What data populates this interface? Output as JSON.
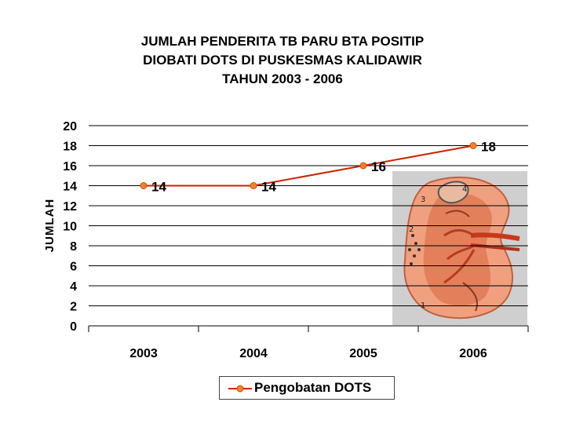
{
  "chart_data": {
    "type": "line",
    "title_lines": [
      "JUMLAH PENDERITA TB PARU BTA POSITIP",
      "DIOBATI DOTS DI PUSKESMAS KALIDAWIR",
      "TAHUN 2003 - 2006"
    ],
    "ylabel": "JUMLAH",
    "xlabel": "",
    "categories": [
      "2003",
      "2004",
      "2005",
      "2006"
    ],
    "series": [
      {
        "name": "Pengobatan DOTS",
        "values": [
          14,
          14,
          16,
          18
        ]
      }
    ],
    "ylim": [
      0,
      20
    ],
    "yticks": [
      "0",
      "2",
      "4",
      "6",
      "8",
      "10",
      "12",
      "14",
      "16",
      "18",
      "20"
    ],
    "grid": true,
    "legend": "bottom",
    "colors": {
      "line": "#cc2200",
      "marker_fill": "#ff7f27",
      "marker_edge": "#c05000",
      "grid": "#000000"
    }
  }
}
